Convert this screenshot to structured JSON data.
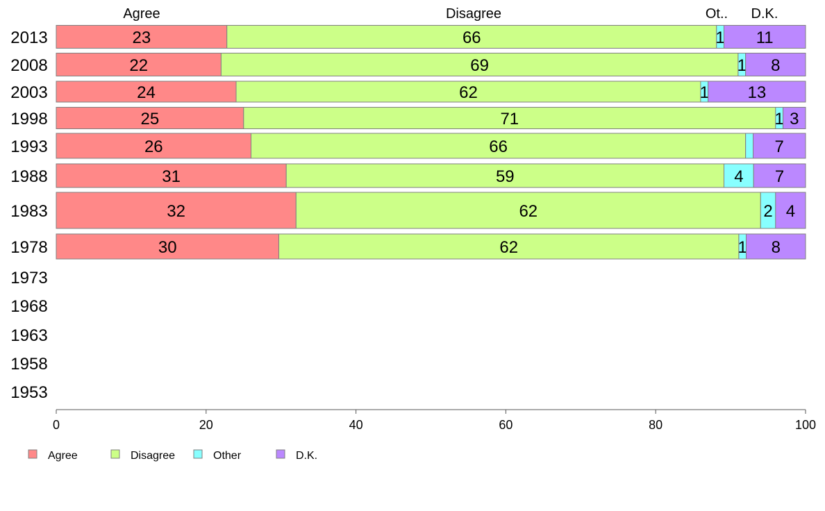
{
  "chart_data": {
    "type": "bar",
    "orientation": "horizontal",
    "stacked": true,
    "xlim": [
      0,
      100
    ],
    "x_ticks": [
      0,
      20,
      40,
      60,
      80,
      100
    ],
    "grid": false,
    "legend_position": "bottom-left",
    "column_headers": [
      "Agree",
      "Disagree",
      "Ot..",
      "D.K."
    ],
    "categories": [
      "2013",
      "2008",
      "2003",
      "1998",
      "1993",
      "1988",
      "1983",
      "1978",
      "1973",
      "1968",
      "1963",
      "1958",
      "1953"
    ],
    "series": [
      {
        "name": "Agree",
        "color": "#ff8888",
        "values": [
          23,
          22,
          24,
          25,
          26,
          31,
          32,
          30,
          null,
          null,
          null,
          null,
          null
        ]
      },
      {
        "name": "Disagree",
        "color": "#ccff88",
        "values": [
          66,
          69,
          62,
          71,
          66,
          59,
          62,
          62,
          null,
          null,
          null,
          null,
          null
        ]
      },
      {
        "name": "Other",
        "color": "#88ffff",
        "values": [
          1,
          1,
          1,
          1,
          1,
          4,
          2,
          1,
          null,
          null,
          null,
          null,
          null
        ],
        "labels": [
          "1",
          "1",
          "1",
          "1",
          "",
          "4",
          "2",
          "1",
          "",
          "",
          "",
          "",
          ""
        ]
      },
      {
        "name": "D.K.",
        "color": "#bb88ff",
        "values": [
          11,
          8,
          13,
          3,
          7,
          7,
          4,
          8,
          null,
          null,
          null,
          null,
          null
        ]
      }
    ]
  }
}
